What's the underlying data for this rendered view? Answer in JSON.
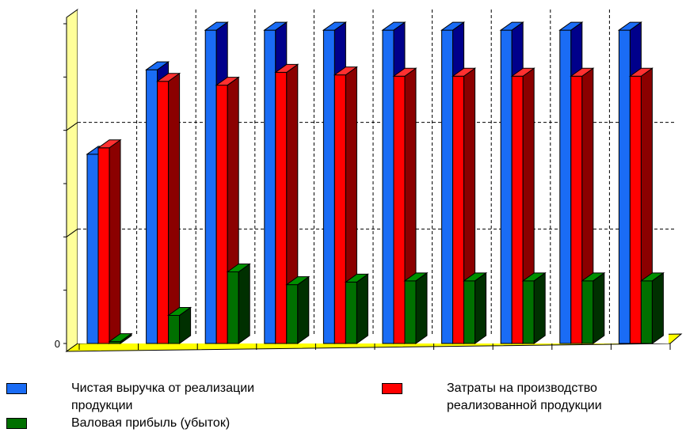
{
  "chart_data": {
    "type": "bar",
    "categories": [
      "",
      "",
      "",
      "",
      "",
      "",
      "",
      "",
      "",
      ""
    ],
    "series": [
      {
        "name": "Чистая выручка от реализации продукции",
        "color": "#1a6cf5",
        "values": [
          1480,
          2140,
          2450,
          2450,
          2450,
          2450,
          2450,
          2450,
          2450,
          2450
        ]
      },
      {
        "name": "Затраты на производство реализованной продукции",
        "color": "#ff0000",
        "values": [
          1530,
          2050,
          2020,
          2120,
          2100,
          2090,
          2090,
          2090,
          2090,
          2090
        ]
      },
      {
        "name": "Валовая прибыль (убыток)",
        "color": "#007000",
        "values": [
          15,
          220,
          560,
          460,
          480,
          490,
          490,
          490,
          490,
          490
        ]
      }
    ],
    "y_ticks": [
      "0",
      "",
      ""
    ],
    "ylim": [
      0,
      2500
    ],
    "grid": true,
    "legend_position": "bottom"
  },
  "legend": {
    "items": [
      {
        "label": "Чистая выручка от реализации продукции",
        "color": "#1a6cf5"
      },
      {
        "label": "Затраты на производство реализованной продукции",
        "color": "#ff0000"
      },
      {
        "label": "Валовая прибыль (убыток)",
        "color": "#007000"
      }
    ]
  }
}
